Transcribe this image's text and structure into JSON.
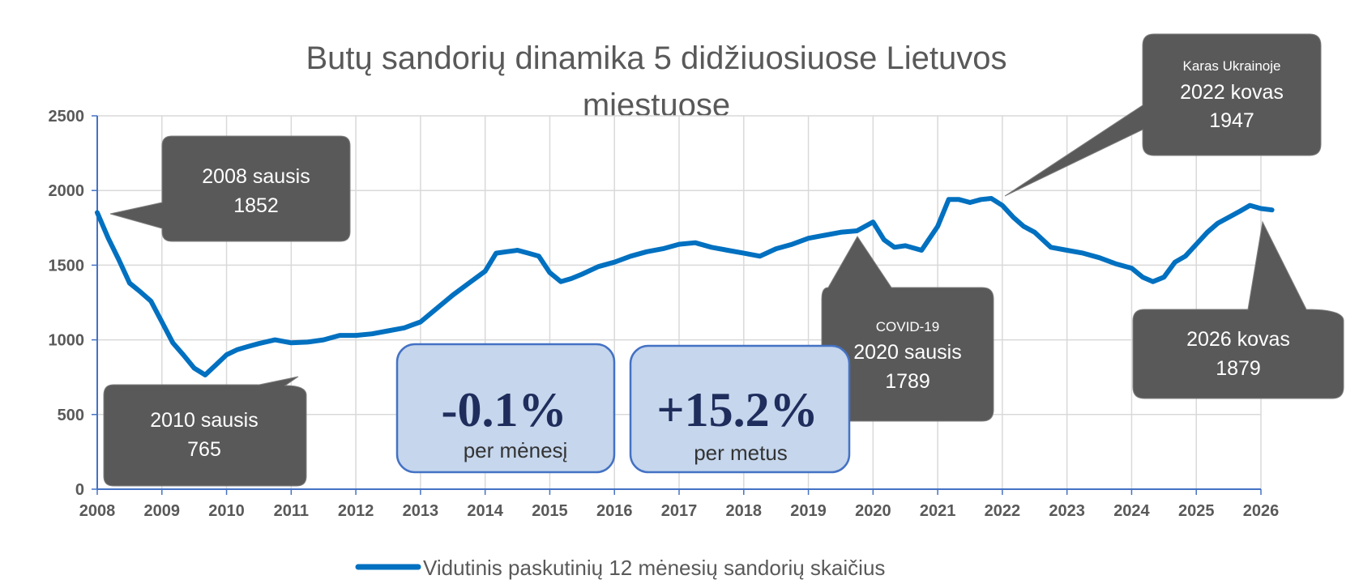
{
  "chart_data": {
    "type": "line",
    "title_lines": [
      "Butų sandorių dinamika 5 didžiuosiuose  Lietuvos",
      "miestuose"
    ],
    "xlabel": "",
    "ylabel": "",
    "ylim": [
      0,
      2500
    ],
    "xlim": [
      2008,
      2026
    ],
    "y_ticks": [
      "0",
      "500",
      "1000",
      "1500",
      "2000",
      "2500"
    ],
    "x_ticks": [
      "2008",
      "2009",
      "2010",
      "2011",
      "2012",
      "2013",
      "2014",
      "2015",
      "2016",
      "2017",
      "2018",
      "2019",
      "2020",
      "2021",
      "2022",
      "2023",
      "2024",
      "2025",
      "2026"
    ],
    "grid": true,
    "legend_position": "bottom",
    "series": [
      {
        "name": "Vidutinis paskutinių 12 mėnesių sandorių skaičius",
        "color": "#0070c0",
        "x": [
          2008.0,
          2008.17,
          2008.33,
          2008.5,
          2008.67,
          2008.83,
          2009.0,
          2009.17,
          2009.33,
          2009.5,
          2009.67,
          2009.83,
          2010.0,
          2010.17,
          2010.33,
          2010.5,
          2010.75,
          2011.0,
          2011.25,
          2011.5,
          2011.75,
          2012.0,
          2012.25,
          2012.5,
          2012.75,
          2013.0,
          2013.25,
          2013.5,
          2013.75,
          2014.0,
          2014.17,
          2014.33,
          2014.5,
          2014.67,
          2014.83,
          2015.0,
          2015.17,
          2015.33,
          2015.5,
          2015.75,
          2016.0,
          2016.25,
          2016.5,
          2016.75,
          2017.0,
          2017.25,
          2017.5,
          2017.75,
          2018.0,
          2018.25,
          2018.5,
          2018.75,
          2019.0,
          2019.25,
          2019.5,
          2019.75,
          2020.0,
          2020.17,
          2020.33,
          2020.5,
          2020.75,
          2021.0,
          2021.17,
          2021.33,
          2021.5,
          2021.67,
          2021.83,
          2022.0,
          2022.17,
          2022.33,
          2022.5,
          2022.75,
          2023.0,
          2023.25,
          2023.5,
          2023.75,
          2024.0,
          2024.17,
          2024.33,
          2024.5,
          2024.67,
          2024.83,
          2025.0,
          2025.17,
          2025.33,
          2025.5,
          2025.67,
          2025.83,
          2026.0,
          2026.17
        ],
        "y": [
          1852,
          1680,
          1540,
          1380,
          1320,
          1260,
          1120,
          980,
          900,
          810,
          765,
          830,
          900,
          935,
          955,
          975,
          1000,
          980,
          985,
          1000,
          1030,
          1030,
          1040,
          1060,
          1080,
          1120,
          1210,
          1300,
          1380,
          1460,
          1580,
          1590,
          1600,
          1580,
          1560,
          1450,
          1390,
          1410,
          1440,
          1490,
          1520,
          1560,
          1590,
          1610,
          1640,
          1650,
          1620,
          1600,
          1580,
          1560,
          1610,
          1640,
          1680,
          1700,
          1720,
          1730,
          1789,
          1670,
          1620,
          1630,
          1600,
          1760,
          1940,
          1940,
          1920,
          1940,
          1947,
          1900,
          1820,
          1760,
          1720,
          1620,
          1600,
          1580,
          1550,
          1510,
          1480,
          1420,
          1390,
          1420,
          1520,
          1560,
          1640,
          1720,
          1780,
          1820,
          1860,
          1900,
          1879,
          1870
        ]
      }
    ],
    "annotations": [
      {
        "lines": [
          "2008 sausis",
          "1852"
        ]
      },
      {
        "lines": [
          "2010 sausis",
          "765"
        ]
      },
      {
        "lines": [
          "COVID-19",
          "2020 sausis",
          "1789"
        ]
      },
      {
        "lines": [
          "Karas Ukrainoje",
          "2022 kovas",
          "1947"
        ]
      },
      {
        "lines": [
          "2026 kovas",
          "1879"
        ]
      }
    ],
    "kpis": [
      {
        "value": "-0.1%",
        "label": "per mėnesį"
      },
      {
        "value": "+15.2%",
        "label": "per metus"
      }
    ]
  }
}
